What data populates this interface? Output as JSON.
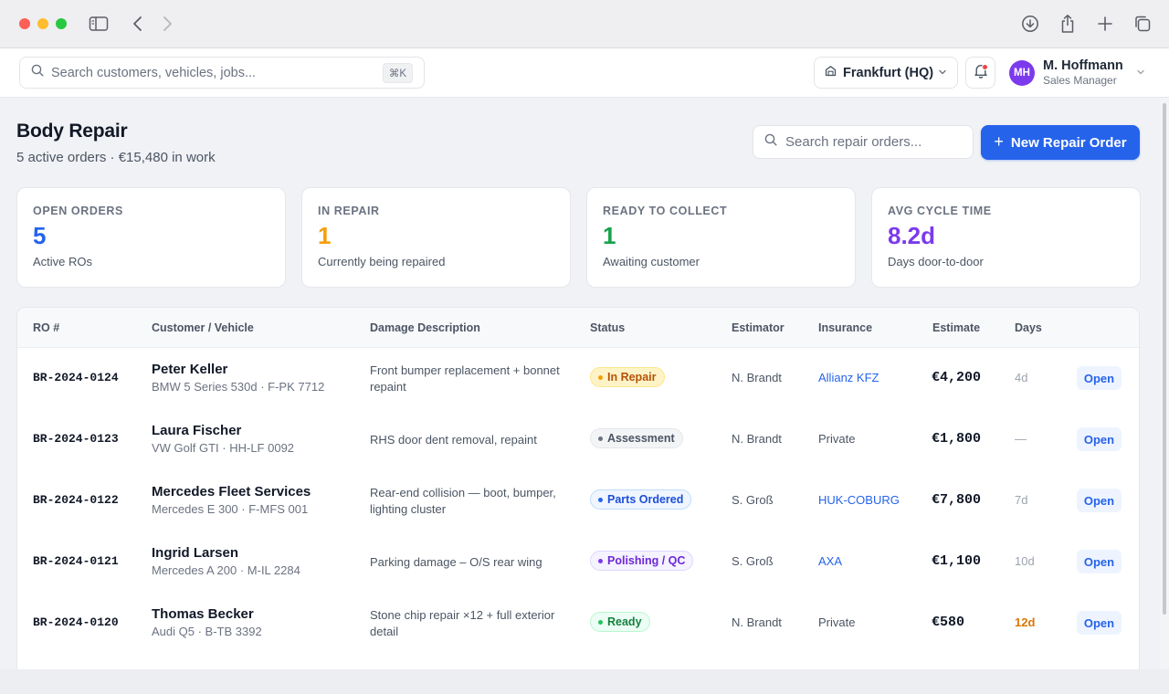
{
  "chrome": {
    "icons": [
      "sidebar-icon",
      "back-icon",
      "forward-icon",
      "download-icon",
      "share-icon",
      "plus-icon",
      "tabs-icon"
    ]
  },
  "header": {
    "search_placeholder": "Search customers, vehicles, jobs...",
    "search_shortcut": "⌘K",
    "location": "Frankfurt (HQ)",
    "user_initials": "MH",
    "user_name": "M. Hoffmann",
    "user_role": "Sales Manager"
  },
  "page": {
    "title": "Body Repair",
    "subtitle": "5 active orders · €15,480 in work",
    "search_placeholder": "Search repair orders...",
    "new_button": "New Repair Order",
    "new_button_icon": "+"
  },
  "stats": [
    {
      "label": "OPEN ORDERS",
      "value": "5",
      "desc": "Active ROs",
      "color": "#2563eb"
    },
    {
      "label": "IN REPAIR",
      "value": "1",
      "desc": "Currently being repaired",
      "color": "#f59e0b"
    },
    {
      "label": "READY TO COLLECT",
      "value": "1",
      "desc": "Awaiting customer",
      "color": "#16a34a"
    },
    {
      "label": "AVG CYCLE TIME",
      "value": "8.2d",
      "desc": "Days door-to-door",
      "color": "#7c3aed"
    }
  ],
  "table": {
    "columns": [
      "RO #",
      "Customer / Vehicle",
      "Damage Description",
      "Status",
      "Estimator",
      "Insurance",
      "Estimate",
      "Days"
    ],
    "rows": [
      {
        "ro": "BR-2024-0124",
        "customer": "Peter Keller",
        "vehicle": "BMW 5 Series 530d · F-PK 7712",
        "damage": "Front bumper replacement + bonnet repaint",
        "status": "In Repair",
        "estimator": "N. Brandt",
        "insurance": "Allianz KFZ",
        "estimate": "€4,200",
        "days": "4d",
        "action": "Open"
      },
      {
        "ro": "BR-2024-0123",
        "customer": "Laura Fischer",
        "vehicle": "VW Golf GTI · HH-LF 0092",
        "damage": "RHS door dent removal, repaint",
        "status": "Assessment",
        "estimator": "N. Brandt",
        "insurance": "Private",
        "estimate": "€1,800",
        "days": "—",
        "action": "Open"
      },
      {
        "ro": "BR-2024-0122",
        "customer": "Mercedes Fleet Services",
        "vehicle": "Mercedes E 300 · F-MFS 001",
        "damage": "Rear-end collision — boot, bumper, lighting cluster",
        "status": "Parts Ordered",
        "estimator": "S. Groß",
        "insurance": "HUK-COBURG",
        "estimate": "€7,800",
        "days": "7d",
        "action": "Open"
      },
      {
        "ro": "BR-2024-0121",
        "customer": "Ingrid Larsen",
        "vehicle": "Mercedes A 200 · M-IL 2284",
        "damage": "Parking damage – O/S rear wing",
        "status": "Polishing / QC",
        "estimator": "S. Groß",
        "insurance": "AXA",
        "estimate": "€1,100",
        "days": "10d",
        "action": "Open"
      },
      {
        "ro": "BR-2024-0120",
        "customer": "Thomas Becker",
        "vehicle": "Audi Q5 · B-TB 3392",
        "damage": "Stone chip repair ×12 + full exterior detail",
        "status": "Ready",
        "estimator": "N. Brandt",
        "insurance": "Private",
        "estimate": "€580",
        "days": "12d",
        "action": "Open"
      }
    ]
  },
  "colors": {
    "accent": "#2563eb",
    "link": "#2563eb",
    "overdue": "#d97706",
    "status": {
      "In Repair": {
        "bg": "#fef3c7",
        "border": "#fde68a",
        "text": "#b45309",
        "dot": "#f59e0b"
      },
      "Assessment": {
        "bg": "#f3f4f6",
        "border": "#e5e7eb",
        "text": "#4b5563",
        "dot": "#6b7280"
      },
      "Parts Ordered": {
        "bg": "#eff6ff",
        "border": "#bfdbfe",
        "text": "#1d4ed8",
        "dot": "#2563eb"
      },
      "Polishing / QC": {
        "bg": "#f5f3ff",
        "border": "#ddd6fe",
        "text": "#6d28d9",
        "dot": "#7c3aed"
      },
      "Ready": {
        "bg": "#ecfdf5",
        "border": "#bbf7d0",
        "text": "#15803d",
        "dot": "#22c55e"
      }
    }
  }
}
